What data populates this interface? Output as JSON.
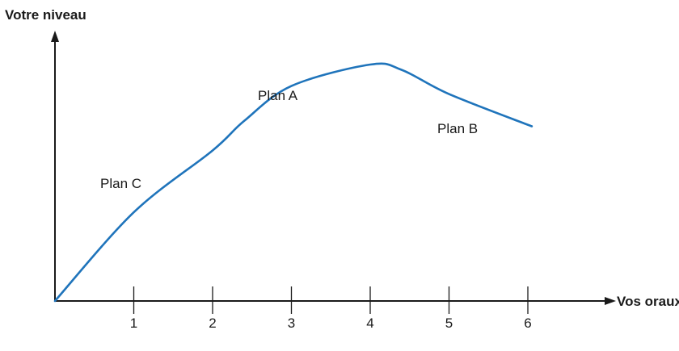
{
  "chart_data": {
    "type": "line",
    "title": "",
    "ylabel": "Votre niveau",
    "xlabel": "Vos oraux",
    "categories": [
      "1",
      "2",
      "3",
      "4",
      "5",
      "6"
    ],
    "xlim": [
      0,
      6.6
    ],
    "grid": false,
    "series": [
      {
        "color": "#1f74bb",
        "x": [
          0,
          1,
          2,
          2.4,
          3,
          4,
          4.4,
          5,
          6.05
        ],
        "y": [
          0,
          0.33,
          0.56,
          0.67,
          0.8,
          0.88,
          0.86,
          0.77,
          0.65
        ]
      }
    ],
    "annotations": [
      {
        "label": "Plan A"
      },
      {
        "label": "Plan B"
      },
      {
        "label": "Plan C"
      }
    ],
    "colors": {
      "axis": "#1a1a1a",
      "line": "#1f74bb"
    }
  }
}
